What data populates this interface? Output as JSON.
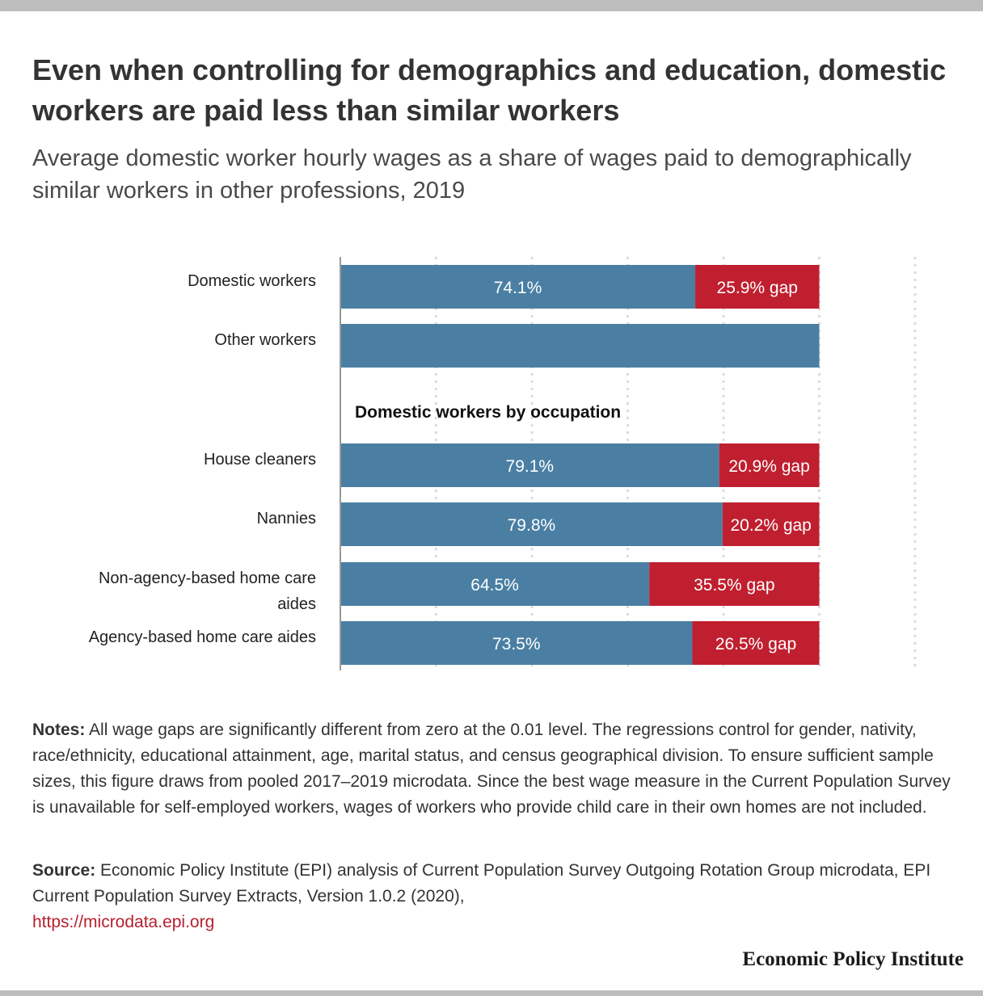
{
  "title": "Even when controlling for demographics and education, domestic workers are paid less than similar workers",
  "subtitle": "Average domestic worker hourly wages as a share of wages paid to demographically similar workers in other professions, 2019",
  "chart_data": {
    "type": "bar",
    "orientation": "horizontal",
    "stacked": true,
    "categories": [
      "Domestic workers",
      "Other workers",
      "House cleaners",
      "Nannies",
      "Non-agency-based home care aides",
      "Agency-based home care aides"
    ],
    "section_heading": "Domestic workers by occupation",
    "series": [
      {
        "name": "",
        "color": "#4a7fa3",
        "values": [
          74.1,
          100,
          79.1,
          79.8,
          64.5,
          73.5
        ],
        "labels": [
          "74.1%",
          "",
          "79.1%",
          "79.8%",
          "64.5%",
          "73.5%"
        ]
      },
      {
        "name": "",
        "color": "#c01f2f",
        "values": [
          25.9,
          0,
          20.9,
          20.2,
          35.5,
          26.5
        ],
        "labels": [
          "25.9% gap",
          "",
          "20.9% gap",
          "20.2% gap",
          "35.5% gap",
          "26.5% gap"
        ]
      }
    ],
    "xlim": [
      0,
      120
    ],
    "grid": true,
    "xlabel": "",
    "ylabel": ""
  },
  "notes": {
    "lead": "Notes:",
    "text": "All wage gaps are significantly different from zero at the 0.01 level. The regressions control for gender, nativity, race/ethnicity, educational attainment, age, marital status, and census geographical division. To ensure sufficient sample sizes, this figure draws from pooled 2017–2019 microdata. Since the best wage measure in the Current Population Survey is unavailable for self-employed workers, wages of workers who provide child care in their own homes are not included."
  },
  "source": {
    "lead": "Source:",
    "text": "Economic Policy Institute (EPI) analysis of Current Population Survey Outgoing Rotation Group microdata, EPI Current Population Survey Extracts, Version 1.0.2 (2020),",
    "link": "https://microdata.epi.org"
  },
  "logo": "Economic Policy Institute"
}
